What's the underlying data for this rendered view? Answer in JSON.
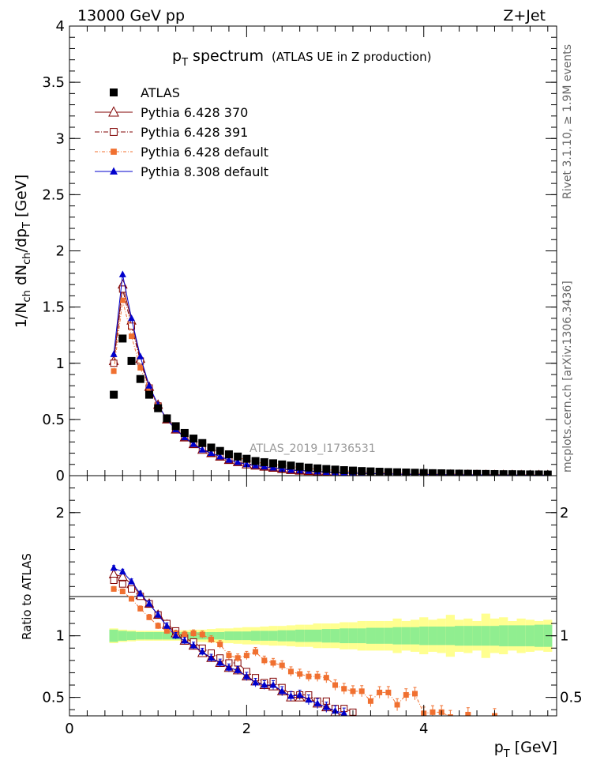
{
  "header": {
    "left": "13000 GeV pp",
    "right": "Z+Jet"
  },
  "side": {
    "rivet": "Rivet 3.1.10, ≥ 1.9M events",
    "mcplots": "mcplots.cern.ch [arXiv:1306.3436]"
  },
  "chart_data": {
    "type": "scatter",
    "title_main": "p",
    "title_sub": "T",
    "title_rest": " spectrum",
    "title_paren": "(ATLAS UE in Z production)",
    "analysis_label": "ATLAS_2019_I1736531",
    "xlabel_main": "p",
    "xlabel_sub": "T",
    "xlabel_rest": " [GeV]",
    "ylabel_top": "1/N_ch dN_ch/dp_T [GeV]",
    "ylabel_bottom": "Ratio to ATLAS",
    "xlim": [
      0,
      5.5
    ],
    "ylim_top": [
      0,
      4.0
    ],
    "ylim_bottom": [
      0.35,
      2.3
    ],
    "x_ticks": [
      0,
      2,
      4
    ],
    "y_ticks_top": [
      0,
      0.5,
      1,
      1.5,
      2,
      2.5,
      3,
      3.5,
      4
    ],
    "y_tick_labels_top": [
      "0",
      "0.5",
      "1",
      "1.5",
      "2",
      "2.5",
      "3",
      "3.5",
      "4"
    ],
    "y_ticks_bottom": [
      0.5,
      1,
      2
    ],
    "y_tick_labels_bottom": [
      "0.5",
      "1",
      "2"
    ],
    "x": [
      0.5,
      0.6,
      0.7,
      0.8,
      0.9,
      1.0,
      1.1,
      1.2,
      1.3,
      1.4,
      1.5,
      1.6,
      1.7,
      1.8,
      1.9,
      2.0,
      2.1,
      2.2,
      2.3,
      2.4,
      2.5,
      2.6,
      2.7,
      2.8,
      2.9,
      3.0,
      3.1,
      3.2,
      3.3,
      3.4,
      3.5,
      3.6,
      3.7,
      3.8,
      3.9,
      4.0,
      4.1,
      4.2,
      4.3,
      4.4,
      4.5,
      4.6,
      4.7,
      4.8,
      4.9,
      5.0,
      5.1,
      5.2,
      5.3,
      5.4
    ],
    "series": [
      {
        "name": "ATLAS",
        "color": "#000000",
        "marker": "filled-square",
        "values": [
          0.72,
          1.22,
          1.02,
          0.86,
          0.72,
          0.6,
          0.51,
          0.44,
          0.38,
          0.33,
          0.29,
          0.25,
          0.22,
          0.19,
          0.17,
          0.15,
          0.13,
          0.12,
          0.11,
          0.1,
          0.09,
          0.08,
          0.072,
          0.065,
          0.059,
          0.054,
          0.049,
          0.045,
          0.041,
          0.038,
          0.035,
          0.032,
          0.03,
          0.028,
          0.026,
          0.024,
          0.022,
          0.021,
          0.019,
          0.018,
          0.017,
          0.016,
          0.015,
          0.014,
          0.013,
          0.013,
          0.012,
          0.011,
          0.011,
          0.01
        ],
        "ratio": [
          1,
          1,
          1,
          1,
          1,
          1,
          1,
          1,
          1,
          1,
          1,
          1,
          1,
          1,
          1,
          1,
          1,
          1,
          1,
          1,
          1,
          1,
          1,
          1,
          1,
          1,
          1,
          1,
          1,
          1,
          1,
          1,
          1,
          1,
          1,
          1,
          1,
          1,
          1,
          1,
          1,
          1,
          1,
          1,
          1,
          1,
          1,
          1,
          1,
          1
        ]
      },
      {
        "name": "Pythia 6.428 370",
        "color": "#800000",
        "marker": "open-triangle",
        "values": [
          1.02,
          1.7,
          1.38,
          1.04,
          0.79,
          0.63,
          0.5,
          0.41,
          0.34,
          0.28,
          0.23,
          0.2,
          0.17,
          0.14,
          0.12,
          0.1,
          0.09,
          0.08,
          0.07,
          0.06,
          0.05,
          0.045,
          0.04,
          0.036,
          0.032,
          0.028,
          0.025,
          0.023,
          0.02,
          0.018,
          0.016,
          0.015,
          0.013,
          0.012,
          0.011,
          0.01,
          0.009,
          0.008,
          0.008,
          0.007,
          0.007,
          0.006,
          0.006,
          0.005,
          0.005,
          0.005,
          0.004,
          0.004,
          0.004,
          0.004
        ],
        "ratio": [
          1.5,
          1.48,
          1.42,
          1.33,
          1.26,
          1.17,
          1.09,
          1.02,
          0.96,
          0.92,
          0.86,
          0.82,
          0.78,
          0.74,
          0.72,
          0.67,
          0.63,
          0.6,
          0.59,
          0.55,
          0.5,
          0.5,
          0.5,
          0.45,
          0.42,
          0.38,
          0.35,
          null,
          null,
          null,
          null,
          null,
          null,
          null,
          null,
          null,
          null,
          null,
          null,
          null,
          null,
          null,
          null,
          null,
          null,
          null,
          null,
          null,
          null,
          null
        ]
      },
      {
        "name": "Pythia 6.428 391",
        "color": "#800000",
        "marker": "open-square",
        "values": [
          1.0,
          1.66,
          1.33,
          1.02,
          0.78,
          0.62,
          0.5,
          0.41,
          0.34,
          0.28,
          0.24,
          0.2,
          0.17,
          0.14,
          0.12,
          0.11,
          0.09,
          0.08,
          0.07,
          0.06,
          0.052,
          0.046,
          0.041,
          0.036,
          0.032,
          0.029,
          0.026,
          0.023,
          0.021,
          0.019,
          0.017,
          0.015,
          0.014,
          0.013,
          0.012,
          0.011,
          0.01,
          0.009,
          0.008,
          0.008,
          0.007,
          0.007,
          0.006,
          0.006,
          0.005,
          0.005,
          0.005,
          0.004,
          0.004,
          0.004
        ],
        "ratio": [
          1.45,
          1.42,
          1.38,
          1.32,
          1.26,
          1.17,
          1.1,
          1.04,
          0.98,
          0.95,
          0.9,
          0.86,
          0.82,
          0.78,
          0.78,
          0.71,
          0.66,
          0.62,
          0.63,
          0.58,
          0.52,
          0.52,
          0.52,
          0.47,
          0.47,
          0.41,
          0.41,
          0.38,
          null,
          null,
          null,
          null,
          null,
          null,
          null,
          null,
          null,
          null,
          null,
          null,
          null,
          null,
          null,
          null,
          null,
          null,
          null,
          null,
          null,
          null
        ]
      },
      {
        "name": "Pythia 6.428 default",
        "color": "#f07030",
        "marker": "filled-small-square",
        "values": [
          0.93,
          1.56,
          1.24,
          0.96,
          0.76,
          0.62,
          0.51,
          0.43,
          0.37,
          0.32,
          0.28,
          0.24,
          0.21,
          0.18,
          0.16,
          0.14,
          0.12,
          0.11,
          0.1,
          0.09,
          0.08,
          0.073,
          0.065,
          0.058,
          0.053,
          0.047,
          0.042,
          0.039,
          0.035,
          0.032,
          0.029,
          0.027,
          0.025,
          0.023,
          0.021,
          0.019,
          0.018,
          0.016,
          0.015,
          0.014,
          0.013,
          0.012,
          0.011,
          0.011,
          0.01,
          0.009,
          0.009,
          0.008,
          0.008,
          0.008
        ],
        "ratio": [
          1.38,
          1.36,
          1.3,
          1.22,
          1.15,
          1.08,
          1.04,
          1.02,
          1.01,
          1.02,
          1.01,
          0.97,
          0.93,
          0.84,
          0.82,
          0.84,
          0.87,
          0.8,
          0.78,
          0.76,
          0.71,
          0.69,
          0.67,
          0.67,
          0.66,
          0.6,
          0.57,
          0.55,
          0.55,
          0.47,
          0.54,
          0.54,
          0.44,
          0.52,
          0.53,
          0.37,
          0.38,
          0.38,
          0.34,
          null,
          0.36,
          null,
          null,
          0.35,
          null,
          null,
          null,
          null,
          null,
          null
        ]
      },
      {
        "name": "Pythia 8.308 default",
        "color": "#0000cc",
        "marker": "filled-triangle",
        "values": [
          1.08,
          1.79,
          1.4,
          1.06,
          0.8,
          0.63,
          0.5,
          0.41,
          0.34,
          0.28,
          0.23,
          0.2,
          0.17,
          0.14,
          0.12,
          0.1,
          0.09,
          0.08,
          0.07,
          0.06,
          0.05,
          0.045,
          0.04,
          0.036,
          0.032,
          0.029,
          0.026,
          0.023,
          0.021,
          0.019,
          0.017,
          0.015,
          0.014,
          0.013,
          0.012,
          0.011,
          0.01,
          0.009,
          0.008,
          0.008,
          0.007,
          0.007,
          0.006,
          0.006,
          0.005,
          0.005,
          0.005,
          0.004,
          0.004,
          0.004
        ],
        "ratio": [
          1.55,
          1.52,
          1.44,
          1.34,
          1.26,
          1.17,
          1.08,
          1.0,
          0.96,
          0.92,
          0.87,
          0.82,
          0.78,
          0.74,
          0.72,
          0.67,
          0.62,
          0.6,
          0.6,
          0.55,
          0.51,
          0.52,
          0.48,
          0.45,
          0.42,
          0.39,
          0.37,
          null,
          null,
          null,
          null,
          null,
          null,
          null,
          null,
          null,
          null,
          null,
          null,
          null,
          null,
          null,
          null,
          null,
          null,
          null,
          null,
          null,
          null,
          null
        ]
      }
    ],
    "uncertainty_band": {
      "x_edges": [
        0.45,
        0.55,
        0.65,
        0.75,
        0.85,
        0.95,
        1.05,
        1.15,
        1.25,
        1.35,
        1.45,
        1.55,
        1.65,
        1.75,
        1.85,
        1.95,
        2.05,
        2.15,
        2.25,
        2.35,
        2.45,
        2.55,
        2.65,
        2.75,
        2.85,
        2.95,
        3.05,
        3.15,
        3.25,
        3.35,
        3.45,
        3.55,
        3.65,
        3.75,
        3.85,
        3.95,
        4.05,
        4.15,
        4.25,
        4.35,
        4.45,
        4.55,
        4.65,
        4.75,
        4.85,
        4.95,
        5.05,
        5.15,
        5.25,
        5.35,
        5.45
      ],
      "stat_err": [
        0.05,
        0.04,
        0.035,
        0.03,
        0.03,
        0.03,
        0.03,
        0.03,
        0.03,
        0.03,
        0.03,
        0.03,
        0.03,
        0.035,
        0.035,
        0.035,
        0.04,
        0.04,
        0.04,
        0.045,
        0.045,
        0.05,
        0.05,
        0.05,
        0.055,
        0.055,
        0.06,
        0.06,
        0.06,
        0.065,
        0.065,
        0.065,
        0.07,
        0.07,
        0.07,
        0.075,
        0.075,
        0.075,
        0.075,
        0.08,
        0.08,
        0.08,
        0.08,
        0.08,
        0.085,
        0.085,
        0.085,
        0.085,
        0.09,
        0.09
      ],
      "total_err": [
        0.06,
        0.05,
        0.045,
        0.04,
        0.04,
        0.04,
        0.04,
        0.04,
        0.045,
        0.05,
        0.05,
        0.055,
        0.06,
        0.06,
        0.065,
        0.07,
        0.07,
        0.075,
        0.08,
        0.08,
        0.085,
        0.09,
        0.09,
        0.1,
        0.1,
        0.1,
        0.11,
        0.11,
        0.12,
        0.12,
        0.12,
        0.12,
        0.14,
        0.12,
        0.13,
        0.15,
        0.13,
        0.14,
        0.17,
        0.13,
        0.14,
        0.12,
        0.18,
        0.14,
        0.15,
        0.12,
        0.14,
        0.13,
        0.12,
        0.13
      ],
      "stat_color": "#90ee90",
      "total_color": "#ffff90"
    }
  }
}
